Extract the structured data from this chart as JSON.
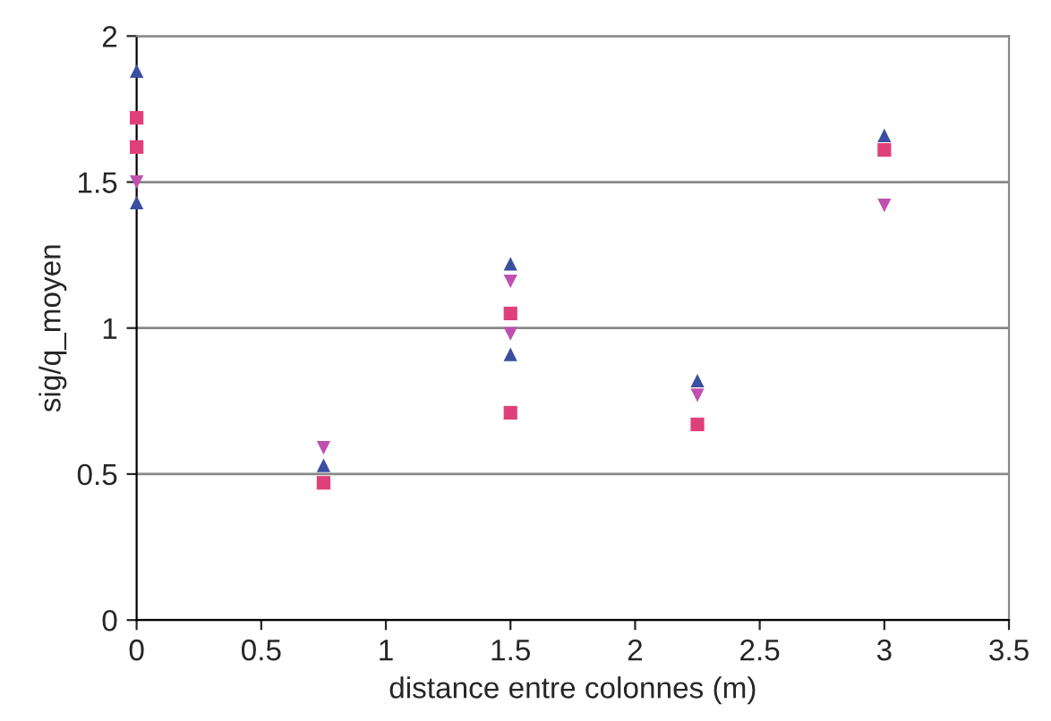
{
  "chart_data": {
    "type": "scatter",
    "xlabel": "distance entre colonnes (m)",
    "ylabel": "sig/q_moyen",
    "xlim": [
      0,
      3.5
    ],
    "xticks": [
      0,
      0.5,
      1,
      1.5,
      2,
      2.5,
      3,
      3.5
    ],
    "ylim": [
      0,
      2
    ],
    "yticks": [
      0,
      0.5,
      1,
      1.5,
      2
    ],
    "grid": "y",
    "series": [
      {
        "color": "#3a4fa0",
        "marker": "triangle",
        "x": [
          0,
          0,
          0.75,
          1.5,
          1.5,
          2.25,
          3
        ],
        "values": [
          1.88,
          1.43,
          0.53,
          1.22,
          0.91,
          0.82,
          1.66
        ]
      },
      {
        "color": "#e0407a",
        "marker": "square",
        "x": [
          0,
          0,
          0.75,
          1.5,
          1.5,
          2.25,
          3
        ],
        "values": [
          1.72,
          1.62,
          0.47,
          1.05,
          0.71,
          0.67,
          1.61
        ]
      },
      {
        "color": "#c050b0",
        "marker": "triangle_down",
        "x": [
          0,
          0.75,
          1.5,
          1.5,
          2.25,
          3
        ],
        "values": [
          1.5,
          0.59,
          1.16,
          0.98,
          0.77,
          1.42
        ]
      }
    ]
  }
}
